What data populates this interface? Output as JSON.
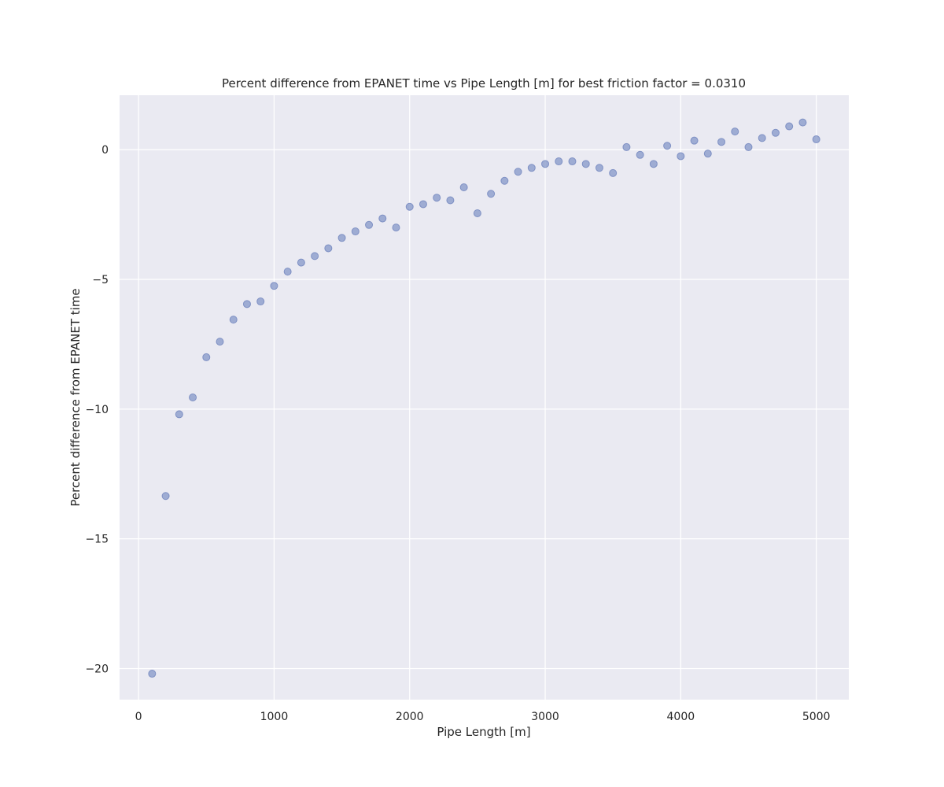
{
  "chart_data": {
    "type": "scatter",
    "title": "Percent difference from EPANET time vs Pipe Length [m] for best friction factor = 0.0310",
    "xlabel": "Pipe Length [m]",
    "ylabel": "Percent difference from EPANET time",
    "xlim": [
      -140,
      5240
    ],
    "ylim": [
      -21.2,
      2.1
    ],
    "xticks": [
      0,
      1000,
      2000,
      3000,
      4000,
      5000
    ],
    "xtick_labels": [
      "0",
      "1000",
      "2000",
      "3000",
      "4000",
      "5000"
    ],
    "yticks": [
      0,
      -5,
      -10,
      -15,
      -20
    ],
    "ytick_labels": [
      "0",
      "−5",
      "−10",
      "−15",
      "−20"
    ],
    "grid": true,
    "legend": "none",
    "point_color": "#8497c8",
    "background_color": "#eaeaf2",
    "x": [
      100,
      200,
      300,
      400,
      500,
      600,
      700,
      800,
      900,
      1000,
      1100,
      1200,
      1300,
      1400,
      1500,
      1600,
      1700,
      1800,
      1900,
      2000,
      2100,
      2200,
      2300,
      2400,
      2500,
      2600,
      2700,
      2800,
      2900,
      3000,
      3100,
      3200,
      3300,
      3400,
      3500,
      3600,
      3700,
      3800,
      3900,
      4000,
      4100,
      4200,
      4300,
      4400,
      4500,
      4600,
      4700,
      4800,
      4900,
      5000
    ],
    "y": [
      -20.2,
      -13.35,
      -10.2,
      -9.55,
      -8.0,
      -7.4,
      -6.55,
      -5.95,
      -5.85,
      -5.25,
      -4.7,
      -4.35,
      -4.1,
      -3.8,
      -3.4,
      -3.15,
      -2.9,
      -2.65,
      -3.0,
      -2.2,
      -2.1,
      -1.85,
      -1.95,
      -1.45,
      -2.45,
      -1.7,
      -1.2,
      -0.85,
      -0.7,
      -0.55,
      -0.45,
      -0.45,
      -0.55,
      -0.7,
      -0.9,
      0.1,
      -0.2,
      -0.55,
      0.15,
      -0.25,
      0.35,
      -0.15,
      0.3,
      0.7,
      0.1,
      0.45,
      0.65,
      0.9,
      1.05,
      0.4
    ]
  }
}
